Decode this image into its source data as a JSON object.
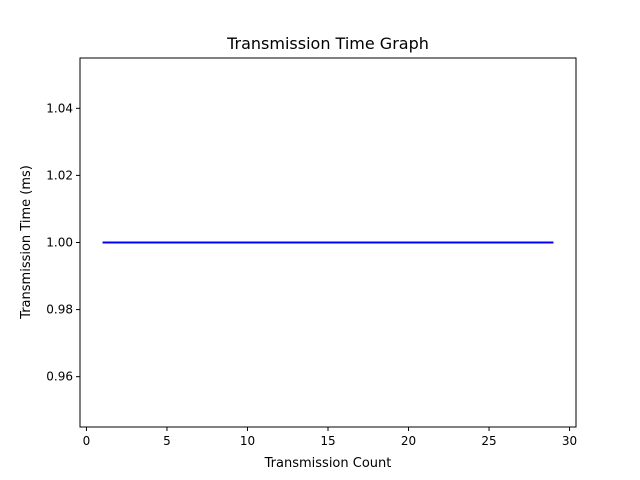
{
  "chart_data": {
    "type": "line",
    "title": "Transmission Time Graph",
    "xlabel": "Transmission Count",
    "ylabel": "Transmission Time (ms)",
    "xlim": [
      -0.4,
      30.4
    ],
    "ylim": [
      0.945,
      1.055
    ],
    "xticks": [
      0,
      5,
      10,
      15,
      20,
      25,
      30
    ],
    "xtick_labels": [
      "0",
      "5",
      "10",
      "15",
      "20",
      "25",
      "30"
    ],
    "yticks": [
      0.96,
      0.98,
      1.0,
      1.02,
      1.04
    ],
    "ytick_labels": [
      "0.96",
      "0.98",
      "1.00",
      "1.02",
      "1.04"
    ],
    "grid": false,
    "series": [
      {
        "color": "#0000ff",
        "x": [
          1,
          2,
          3,
          4,
          5,
          6,
          7,
          8,
          9,
          10,
          11,
          12,
          13,
          14,
          15,
          16,
          17,
          18,
          19,
          20,
          21,
          22,
          23,
          24,
          25,
          26,
          27,
          28,
          29
        ],
        "y": [
          1,
          1,
          1,
          1,
          1,
          1,
          1,
          1,
          1,
          1,
          1,
          1,
          1,
          1,
          1,
          1,
          1,
          1,
          1,
          1,
          1,
          1,
          1,
          1,
          1,
          1,
          1,
          1,
          1
        ]
      }
    ]
  }
}
